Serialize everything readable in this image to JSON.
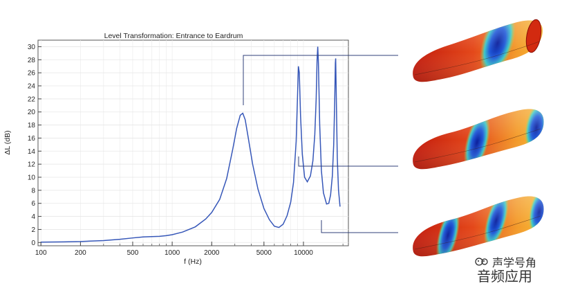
{
  "chart_data": {
    "type": "line",
    "title": "Level Transformation: Entrance to Eardrum",
    "xlabel": "f (Hz)",
    "ylabel": "ΔL (dB)",
    "xscale": "log",
    "xlim": [
      95,
      22000
    ],
    "ylim": [
      -0.5,
      31
    ],
    "grid": true,
    "xticks": [
      100,
      200,
      500,
      1000,
      2000,
      5000,
      10000
    ],
    "xtick_labels": [
      "100",
      "200",
      "500",
      "1000",
      "2000",
      "5000",
      "10000"
    ],
    "yticks": [
      0,
      2,
      4,
      6,
      8,
      10,
      12,
      14,
      16,
      18,
      20,
      22,
      24,
      26,
      28,
      30
    ],
    "ytick_labels": [
      "0",
      "2",
      "4",
      "6",
      "8",
      "10",
      "12",
      "14",
      "16",
      "18",
      "20",
      "22",
      "24",
      "26",
      "28",
      "30"
    ],
    "series": [
      {
        "color": "#3556b8",
        "x": [
          100,
          150,
          200,
          300,
          400,
          500,
          600,
          700,
          800,
          900,
          1000,
          1200,
          1500,
          1800,
          2000,
          2300,
          2600,
          2900,
          3100,
          3300,
          3450,
          3600,
          3800,
          4100,
          4500,
          5000,
          5500,
          6000,
          6500,
          7000,
          7500,
          8000,
          8400,
          8800,
          9000,
          9150,
          9300,
          9500,
          9800,
          10200,
          10700,
          11300,
          11800,
          12200,
          12500,
          12700,
          12850,
          13000,
          13300,
          13700,
          14200,
          15000,
          15600,
          16100,
          16600,
          17000,
          17300,
          17500,
          17600,
          17800,
          18100,
          18500,
          19000
        ],
        "y": [
          0.05,
          0.1,
          0.15,
          0.3,
          0.5,
          0.7,
          0.85,
          0.9,
          0.95,
          1.05,
          1.2,
          1.6,
          2.4,
          3.6,
          4.6,
          6.6,
          9.8,
          14.4,
          17.5,
          19.5,
          19.8,
          18.8,
          16.0,
          12.0,
          8.2,
          5.2,
          3.5,
          2.5,
          2.3,
          2.8,
          4.1,
          6.2,
          9.2,
          15.5,
          22.0,
          27.0,
          26.0,
          19.5,
          13.5,
          10.0,
          9.3,
          10.2,
          12.5,
          16.5,
          22.0,
          28.0,
          30.0,
          27.5,
          18.0,
          11.0,
          7.6,
          5.9,
          6.0,
          7.3,
          10.2,
          15.0,
          21.5,
          27.5,
          28.2,
          22.0,
          13.0,
          8.0,
          5.5
        ]
      }
    ]
  },
  "mode_images": [
    {
      "name": "mode-shape-1"
    },
    {
      "name": "mode-shape-2"
    },
    {
      "name": "mode-shape-3"
    }
  ],
  "watermark": {
    "line1": "声学号角",
    "line2": "音频应用"
  }
}
